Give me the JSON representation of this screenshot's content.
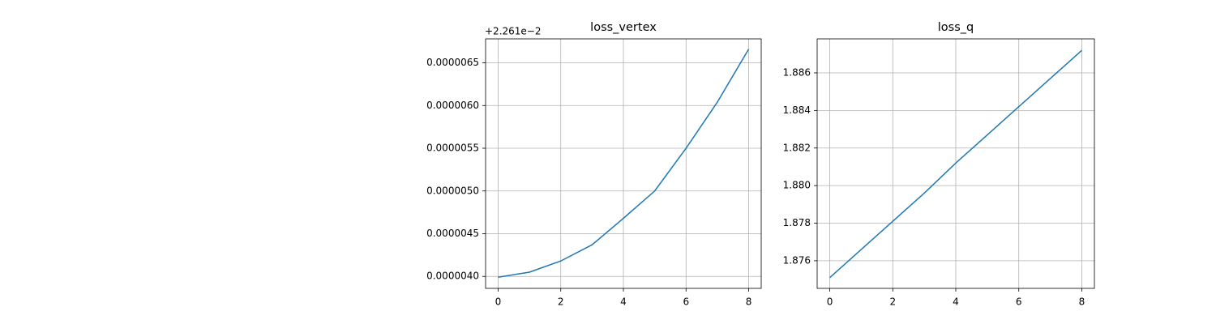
{
  "chart_data": [
    {
      "type": "line",
      "title": "loss_vertex",
      "offset_label": "+2.261e−2",
      "x": [
        0,
        1,
        2,
        3,
        4,
        5,
        6,
        7,
        8
      ],
      "series": [
        {
          "color": "#1f77b4",
          "values": [
            3.99e-06,
            4.05e-06,
            4.18e-06,
            4.37e-06,
            4.68e-06,
            5e-06,
            5.5e-06,
            6.04e-06,
            6.66e-06
          ]
        }
      ],
      "xlim": [
        -0.4,
        8.4
      ],
      "xticks": [
        0,
        2,
        4,
        6,
        8
      ],
      "ylim": [
        3.86e-06,
        6.78e-06
      ],
      "yticks": [
        {
          "value": 4e-06,
          "label": "0.0000040"
        },
        {
          "value": 4.5e-06,
          "label": "0.0000045"
        },
        {
          "value": 5e-06,
          "label": "0.0000050"
        },
        {
          "value": 5.5e-06,
          "label": "0.0000055"
        },
        {
          "value": 6e-06,
          "label": "0.0000060"
        },
        {
          "value": 6.5e-06,
          "label": "0.0000065"
        }
      ],
      "grid": true
    },
    {
      "type": "line",
      "title": "loss_q",
      "x": [
        0,
        1,
        2,
        3,
        4,
        5,
        6,
        7,
        8
      ],
      "series": [
        {
          "color": "#1f77b4",
          "values": [
            1.8751,
            1.8766,
            1.8781,
            1.8796,
            1.8812,
            1.8827,
            1.8842,
            1.8857,
            1.8872
          ]
        }
      ],
      "xlim": [
        -0.4,
        8.4
      ],
      "xticks": [
        0,
        2,
        4,
        6,
        8
      ],
      "ylim": [
        1.87453,
        1.88781
      ],
      "yticks": [
        1.876,
        1.878,
        {
          "value": 1.88,
          "label": "1.880"
        },
        1.882,
        1.884,
        1.886
      ],
      "grid": true
    }
  ]
}
